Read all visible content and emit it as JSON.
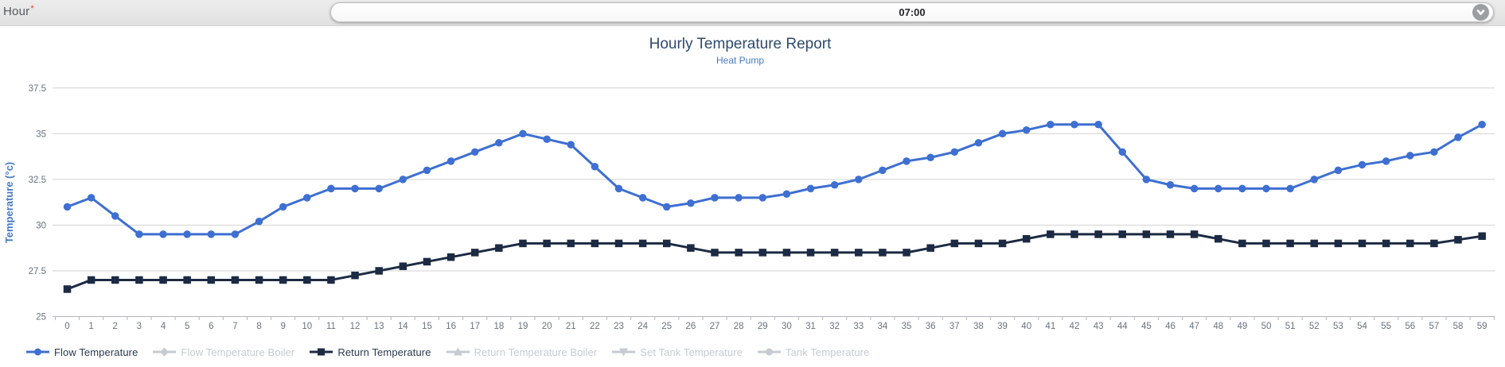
{
  "form": {
    "hour_label": "Hour",
    "required_marker": "*",
    "hour_value": "07:00",
    "chevron_icon": "chevron-down"
  },
  "chart": {
    "title": "Hourly Temperature Report",
    "subtitle": "Heat Pump"
  },
  "chart_data": {
    "type": "line",
    "title": "Hourly Temperature Report",
    "subtitle": "Heat Pump",
    "xlabel": "",
    "ylabel": "Temperature (°c)",
    "x": [
      0,
      1,
      2,
      3,
      4,
      5,
      6,
      7,
      8,
      9,
      10,
      11,
      12,
      13,
      14,
      15,
      16,
      17,
      18,
      19,
      20,
      21,
      22,
      23,
      24,
      25,
      26,
      27,
      28,
      29,
      30,
      31,
      32,
      33,
      34,
      35,
      36,
      37,
      38,
      39,
      40,
      41,
      42,
      43,
      44,
      45,
      46,
      47,
      48,
      49,
      50,
      51,
      52,
      53,
      54,
      55,
      56,
      57,
      58,
      59
    ],
    "ylim": [
      25,
      37.5
    ],
    "yticks": [
      25,
      27.5,
      30,
      32.5,
      35,
      37.5
    ],
    "grid": "horizontal",
    "legend_position": "bottom-left",
    "series": [
      {
        "name": "Flow Temperature",
        "color": "#3e6fd1",
        "marker": "circle",
        "enabled": true,
        "values": [
          31.0,
          31.5,
          30.5,
          29.5,
          29.5,
          29.5,
          29.5,
          29.5,
          30.2,
          31.0,
          31.5,
          32.0,
          32.0,
          32.0,
          32.5,
          33.0,
          33.5,
          34.0,
          34.5,
          35.0,
          34.7,
          34.4,
          33.2,
          32.0,
          31.5,
          31.0,
          31.2,
          31.5,
          31.5,
          31.5,
          31.7,
          32.0,
          32.2,
          32.5,
          33.0,
          33.5,
          33.7,
          34.0,
          34.5,
          35.0,
          35.2,
          35.5,
          35.5,
          35.5,
          34.0,
          32.5,
          32.2,
          32.0,
          32.0,
          32.0,
          32.0,
          32.0,
          32.5,
          33.0,
          33.3,
          33.5,
          33.8,
          34.0,
          34.8,
          35.5
        ]
      },
      {
        "name": "Flow Temperature Boiler",
        "color": "#c6cad1",
        "marker": "diamond",
        "enabled": false,
        "values": []
      },
      {
        "name": "Return Temperature",
        "color": "#1c2a43",
        "marker": "square",
        "enabled": true,
        "values": [
          26.5,
          27.0,
          27.0,
          27.0,
          27.0,
          27.0,
          27.0,
          27.0,
          27.0,
          27.0,
          27.0,
          27.0,
          27.25,
          27.5,
          27.75,
          28.0,
          28.25,
          28.5,
          28.75,
          29.0,
          29.0,
          29.0,
          29.0,
          29.0,
          29.0,
          29.0,
          28.75,
          28.5,
          28.5,
          28.5,
          28.5,
          28.5,
          28.5,
          28.5,
          28.5,
          28.5,
          28.75,
          29.0,
          29.0,
          29.0,
          29.25,
          29.5,
          29.5,
          29.5,
          29.5,
          29.5,
          29.5,
          29.5,
          29.25,
          29.0,
          29.0,
          29.0,
          29.0,
          29.0,
          29.0,
          29.0,
          29.0,
          29.0,
          29.2,
          29.4
        ]
      },
      {
        "name": "Return Temperature Boiler",
        "color": "#c6cad1",
        "marker": "triangle-up",
        "enabled": false,
        "values": []
      },
      {
        "name": "Set Tank Temperature",
        "color": "#c6cad1",
        "marker": "triangle-down",
        "enabled": false,
        "values": []
      },
      {
        "name": "Tank Temperature",
        "color": "#c6cad1",
        "marker": "circle",
        "enabled": false,
        "values": []
      }
    ],
    "colors": {
      "grid": "#d2d2d2",
      "axis": "#b2b6bb",
      "tick_label": "#68727e",
      "title": "#2e4a6e",
      "subtitle": "#4779c4",
      "axis_title": "#4779c4",
      "legend_enabled_text": "#2a3950",
      "legend_disabled_text": "#c6cad1"
    }
  }
}
